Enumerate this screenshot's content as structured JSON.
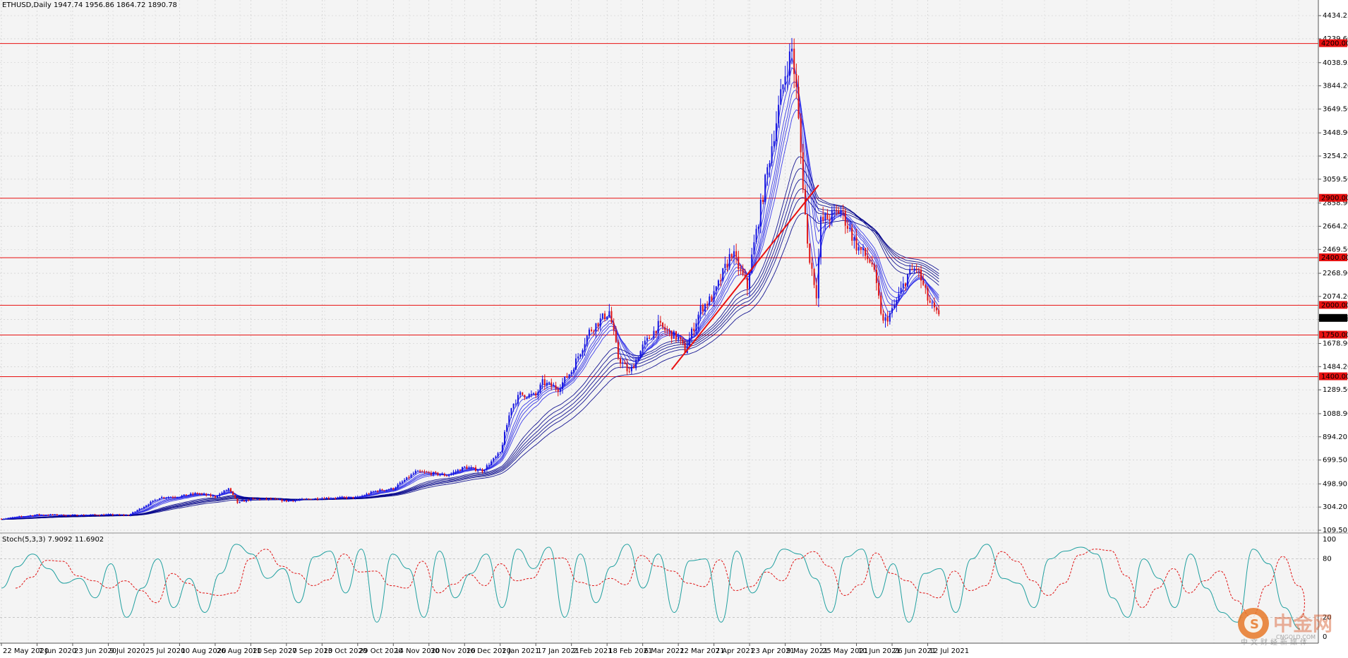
{
  "header": {
    "symbol_line": "ETHUSD,Daily  1947.74 1956.86 1864.72 1890.78"
  },
  "indicator": {
    "label": "Stoch(5,3,3) 7.9092 11.6902",
    "levels": [
      20,
      80
    ],
    "scale_labels": [
      "100",
      "80",
      "20",
      "0"
    ]
  },
  "watermark": {
    "name": "中金网",
    "url": "CNGOLD.COM",
    "tagline": "中文财经新媒体"
  },
  "colors": {
    "background": "#f4f4f4",
    "grid": "#c8c8c8",
    "bull_candle": "#1515e0",
    "bear_candle": "#e01515",
    "ma_ribbon": "#0000cc",
    "levels": "#e81010",
    "trendline": "#e81010",
    "stoch_main": "#20a0a0",
    "stoch_signal": "#e01515"
  },
  "chart_data": {
    "type": "candlestick",
    "title": "ETHUSD,Daily",
    "last": {
      "open": 1947.74,
      "high": 1956.86,
      "low": 1864.72,
      "close": 1890.78
    },
    "y_ticks": [
      "4434.25",
      "4239.60",
      "4038.95",
      "3844.20",
      "3649.50",
      "3448.90",
      "3254.20",
      "3059.50",
      "2858.90",
      "2664.20",
      "2469.50",
      "2268.90",
      "2074.20",
      "1879.50",
      "1678.90",
      "1484.20",
      "1289.50",
      "1088.90",
      "894.20",
      "699.50",
      "498.90",
      "304.20",
      "109.50"
    ],
    "y_range": [
      109.5,
      4530
    ],
    "x_labels": [
      "22 May 2020",
      "7 Jun 2020",
      "23 Jun 2020",
      "9 Jul 2020",
      "25 Jul 2020",
      "10 Aug 2020",
      "26 Aug 2020",
      "11 Sep 2020",
      "27 Sep 2020",
      "13 Oct 2020",
      "29 Oct 2020",
      "14 Nov 2020",
      "30 Nov 2020",
      "16 Dec 2020",
      "1 Jan 2021",
      "17 Jan 2021",
      "2 Feb 2021",
      "18 Feb 2021",
      "6 Mar 2021",
      "22 Mar 2021",
      "7 Apr 2021",
      "23 Apr 2021",
      "9 May 2021",
      "25 May 2021",
      "10 Jun 2021",
      "26 Jun 2021",
      "12 Jul 2021"
    ],
    "horizontal_levels": [
      {
        "label": "4200.00",
        "value": 4200
      },
      {
        "label": "2900.00",
        "value": 2900
      },
      {
        "label": "2400.00",
        "value": 2400
      },
      {
        "label": "2000.00",
        "value": 2000
      },
      {
        "label": "1750.00",
        "value": 1750
      },
      {
        "label": "1400.00",
        "value": 1400
      }
    ],
    "current_price": {
      "label": "1890.78",
      "value": 1890.78
    },
    "trendline": {
      "start": {
        "date": "19 Mar 2021",
        "price": 1460
      },
      "end": {
        "date": "24 May 2021",
        "price": 3010
      }
    },
    "price_path": [
      [
        "22 May 2020",
        205
      ],
      [
        "7 Jun 2020",
        240
      ],
      [
        "23 Jun 2020",
        235
      ],
      [
        "9 Jul 2020",
        240
      ],
      [
        "18 Jul 2020",
        235
      ],
      [
        "25 Jul 2020",
        310
      ],
      [
        "1 Aug 2020",
        385
      ],
      [
        "10 Aug 2020",
        395
      ],
      [
        "18 Aug 2020",
        420
      ],
      [
        "26 Aug 2020",
        390
      ],
      [
        "1 Sep 2020",
        460
      ],
      [
        "5 Sep 2020",
        340
      ],
      [
        "11 Sep 2020",
        370
      ],
      [
        "20 Sep 2020",
        370
      ],
      [
        "27 Sep 2020",
        355
      ],
      [
        "13 Oct 2020",
        380
      ],
      [
        "29 Oct 2020",
        385
      ],
      [
        "6 Nov 2020",
        440
      ],
      [
        "14 Nov 2020",
        460
      ],
      [
        "24 Nov 2020",
        600
      ],
      [
        "30 Nov 2020",
        590
      ],
      [
        "8 Dec 2020",
        570
      ],
      [
        "16 Dec 2020",
        640
      ],
      [
        "24 Dec 2020",
        610
      ],
      [
        "1 Jan 2021",
        760
      ],
      [
        "6 Jan 2021",
        1150
      ],
      [
        "10 Jan 2021",
        1250
      ],
      [
        "17 Jan 2021",
        1240
      ],
      [
        "20 Jan 2021",
        1350
      ],
      [
        "27 Jan 2021",
        1300
      ],
      [
        "2 Feb 2021",
        1450
      ],
      [
        "10 Feb 2021",
        1780
      ],
      [
        "19 Feb 2021",
        1950
      ],
      [
        "23 Feb 2021",
        1560
      ],
      [
        "28 Feb 2021",
        1430
      ],
      [
        "6 Mar 2021",
        1650
      ],
      [
        "13 Mar 2021",
        1830
      ],
      [
        "22 Mar 2021",
        1720
      ],
      [
        "25 Mar 2021",
        1620
      ],
      [
        "1 Apr 2021",
        1970
      ],
      [
        "7 Apr 2021",
        2080
      ],
      [
        "15 Apr 2021",
        2450
      ],
      [
        "22 Apr 2021",
        2150
      ],
      [
        "23 Apr 2021",
        2300
      ],
      [
        "3 May 2021",
        3350
      ],
      [
        "9 May 2021",
        3950
      ],
      [
        "12 May 2021",
        4150
      ],
      [
        "14 May 2021",
        3800
      ],
      [
        "19 May 2021",
        2500
      ],
      [
        "23 May 2021",
        2100
      ],
      [
        "25 May 2021",
        2700
      ],
      [
        "3 Jun 2021",
        2800
      ],
      [
        "10 Jun 2021",
        2500
      ],
      [
        "17 Jun 2021",
        2350
      ],
      [
        "22 Jun 2021",
        1850
      ],
      [
        "26 Jun 2021",
        1950
      ],
      [
        "3 Jul 2021",
        2250
      ],
      [
        "7 Jul 2021",
        2320
      ],
      [
        "12 Jul 2021",
        2050
      ],
      [
        "16 Jul 2021",
        1891
      ]
    ],
    "stochastic": {
      "main": [
        50,
        72,
        85,
        70,
        55,
        60,
        40,
        75,
        20,
        50,
        80,
        30,
        60,
        25,
        65,
        95,
        85,
        60,
        70,
        35,
        82,
        88,
        45,
        90,
        15,
        85,
        70,
        20,
        88,
        40,
        65,
        85,
        30,
        90,
        70,
        92,
        20,
        85,
        35,
        72,
        95,
        50,
        85,
        25,
        78,
        80,
        15,
        88,
        45,
        70,
        90,
        85,
        60,
        25,
        82,
        90,
        40,
        75,
        15,
        65,
        70,
        25,
        80,
        95,
        60,
        55,
        30,
        80,
        88,
        92,
        85,
        40,
        20,
        80,
        60,
        30,
        85,
        50,
        25,
        15,
        90,
        75,
        30,
        8
      ],
      "signal_lag_points": 1
    }
  }
}
